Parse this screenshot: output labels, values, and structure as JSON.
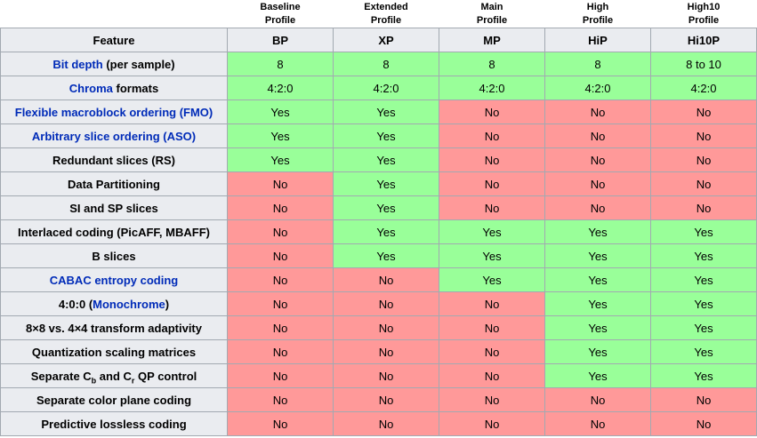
{
  "colors": {
    "yes_bg": "#99FF99",
    "no_bg": "#FF9999",
    "header_bg": "#EAECF0",
    "border": "#A2A9B1",
    "link": "#002BB8",
    "text": "#000000"
  },
  "table": {
    "feature_header": "Feature",
    "profiles": [
      {
        "name_line1": "Baseline",
        "name_line2": "Profile",
        "abbr": "BP"
      },
      {
        "name_line1": "Extended",
        "name_line2": "Profile",
        "abbr": "XP"
      },
      {
        "name_line1": "Main",
        "name_line2": "Profile",
        "abbr": "MP"
      },
      {
        "name_line1": "High",
        "name_line2": "Profile",
        "abbr": "HiP"
      },
      {
        "name_line1": "High10",
        "name_line2": "Profile",
        "abbr": "Hi10P"
      }
    ],
    "rows": [
      {
        "feature": [
          {
            "t": "Bit depth",
            "link": true
          },
          {
            "t": " (per sample)"
          }
        ],
        "cells": [
          {
            "t": "8",
            "s": "yes"
          },
          {
            "t": "8",
            "s": "yes"
          },
          {
            "t": "8",
            "s": "yes"
          },
          {
            "t": "8",
            "s": "yes"
          },
          {
            "t": "8 to 10",
            "s": "yes"
          }
        ]
      },
      {
        "feature": [
          {
            "t": "Chroma",
            "link": true
          },
          {
            "t": " formats"
          }
        ],
        "cells": [
          {
            "t": "4:2:0",
            "s": "yes"
          },
          {
            "t": "4:2:0",
            "s": "yes"
          },
          {
            "t": "4:2:0",
            "s": "yes"
          },
          {
            "t": "4:2:0",
            "s": "yes"
          },
          {
            "t": "4:2:0",
            "s": "yes"
          }
        ]
      },
      {
        "feature": [
          {
            "t": "Flexible macroblock ordering (FMO)",
            "link": true
          }
        ],
        "cells": [
          {
            "t": "Yes",
            "s": "yes"
          },
          {
            "t": "Yes",
            "s": "yes"
          },
          {
            "t": "No",
            "s": "no"
          },
          {
            "t": "No",
            "s": "no"
          },
          {
            "t": "No",
            "s": "no"
          }
        ]
      },
      {
        "feature": [
          {
            "t": "Arbitrary slice ordering (ASO)",
            "link": true
          }
        ],
        "cells": [
          {
            "t": "Yes",
            "s": "yes"
          },
          {
            "t": "Yes",
            "s": "yes"
          },
          {
            "t": "No",
            "s": "no"
          },
          {
            "t": "No",
            "s": "no"
          },
          {
            "t": "No",
            "s": "no"
          }
        ]
      },
      {
        "feature": [
          {
            "t": "Redundant slices (RS)"
          }
        ],
        "cells": [
          {
            "t": "Yes",
            "s": "yes"
          },
          {
            "t": "Yes",
            "s": "yes"
          },
          {
            "t": "No",
            "s": "no"
          },
          {
            "t": "No",
            "s": "no"
          },
          {
            "t": "No",
            "s": "no"
          }
        ]
      },
      {
        "feature": [
          {
            "t": "Data Partitioning"
          }
        ],
        "cells": [
          {
            "t": "No",
            "s": "no"
          },
          {
            "t": "Yes",
            "s": "yes"
          },
          {
            "t": "No",
            "s": "no"
          },
          {
            "t": "No",
            "s": "no"
          },
          {
            "t": "No",
            "s": "no"
          }
        ]
      },
      {
        "feature": [
          {
            "t": "SI and SP slices"
          }
        ],
        "cells": [
          {
            "t": "No",
            "s": "no"
          },
          {
            "t": "Yes",
            "s": "yes"
          },
          {
            "t": "No",
            "s": "no"
          },
          {
            "t": "No",
            "s": "no"
          },
          {
            "t": "No",
            "s": "no"
          }
        ]
      },
      {
        "feature": [
          {
            "t": "Interlaced coding (PicAFF, MBAFF)"
          }
        ],
        "cells": [
          {
            "t": "No",
            "s": "no"
          },
          {
            "t": "Yes",
            "s": "yes"
          },
          {
            "t": "Yes",
            "s": "yes"
          },
          {
            "t": "Yes",
            "s": "yes"
          },
          {
            "t": "Yes",
            "s": "yes"
          }
        ]
      },
      {
        "feature": [
          {
            "t": "B slices"
          }
        ],
        "cells": [
          {
            "t": "No",
            "s": "no"
          },
          {
            "t": "Yes",
            "s": "yes"
          },
          {
            "t": "Yes",
            "s": "yes"
          },
          {
            "t": "Yes",
            "s": "yes"
          },
          {
            "t": "Yes",
            "s": "yes"
          }
        ]
      },
      {
        "feature": [
          {
            "t": "CABAC entropy coding",
            "link": true
          }
        ],
        "cells": [
          {
            "t": "No",
            "s": "no"
          },
          {
            "t": "No",
            "s": "no"
          },
          {
            "t": "Yes",
            "s": "yes"
          },
          {
            "t": "Yes",
            "s": "yes"
          },
          {
            "t": "Yes",
            "s": "yes"
          }
        ]
      },
      {
        "feature": [
          {
            "t": "4:0:0 ("
          },
          {
            "t": "Monochrome",
            "link": true
          },
          {
            "t": ")"
          }
        ],
        "cells": [
          {
            "t": "No",
            "s": "no"
          },
          {
            "t": "No",
            "s": "no"
          },
          {
            "t": "No",
            "s": "no"
          },
          {
            "t": "Yes",
            "s": "yes"
          },
          {
            "t": "Yes",
            "s": "yes"
          }
        ]
      },
      {
        "feature": [
          {
            "t": "8×8 vs. 4×4 transform adaptivity"
          }
        ],
        "cells": [
          {
            "t": "No",
            "s": "no"
          },
          {
            "t": "No",
            "s": "no"
          },
          {
            "t": "No",
            "s": "no"
          },
          {
            "t": "Yes",
            "s": "yes"
          },
          {
            "t": "Yes",
            "s": "yes"
          }
        ]
      },
      {
        "feature": [
          {
            "t": "Quantization scaling matrices"
          }
        ],
        "cells": [
          {
            "t": "No",
            "s": "no"
          },
          {
            "t": "No",
            "s": "no"
          },
          {
            "t": "No",
            "s": "no"
          },
          {
            "t": "Yes",
            "s": "yes"
          },
          {
            "t": "Yes",
            "s": "yes"
          }
        ]
      },
      {
        "feature": [
          {
            "t": "Separate C"
          },
          {
            "t": "b",
            "sub": true
          },
          {
            "t": " and C"
          },
          {
            "t": "r",
            "sub": true
          },
          {
            "t": " QP control"
          }
        ],
        "cells": [
          {
            "t": "No",
            "s": "no"
          },
          {
            "t": "No",
            "s": "no"
          },
          {
            "t": "No",
            "s": "no"
          },
          {
            "t": "Yes",
            "s": "yes"
          },
          {
            "t": "Yes",
            "s": "yes"
          }
        ]
      },
      {
        "feature": [
          {
            "t": "Separate color plane coding"
          }
        ],
        "cells": [
          {
            "t": "No",
            "s": "no"
          },
          {
            "t": "No",
            "s": "no"
          },
          {
            "t": "No",
            "s": "no"
          },
          {
            "t": "No",
            "s": "no"
          },
          {
            "t": "No",
            "s": "no"
          }
        ]
      },
      {
        "feature": [
          {
            "t": "Predictive lossless coding"
          }
        ],
        "cells": [
          {
            "t": "No",
            "s": "no"
          },
          {
            "t": "No",
            "s": "no"
          },
          {
            "t": "No",
            "s": "no"
          },
          {
            "t": "No",
            "s": "no"
          },
          {
            "t": "No",
            "s": "no"
          }
        ]
      }
    ]
  }
}
